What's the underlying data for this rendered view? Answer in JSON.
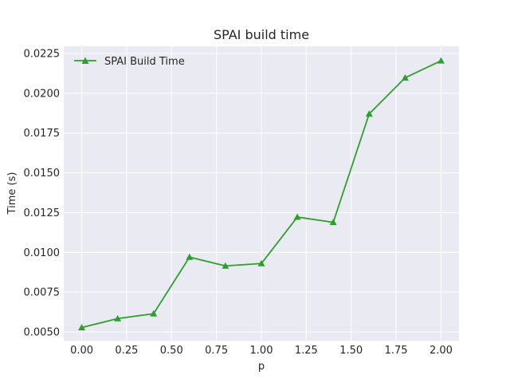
{
  "chart_data": {
    "type": "line",
    "title": "SPAI build time",
    "xlabel": "p",
    "ylabel": "Time (s)",
    "xlim": [
      -0.1,
      2.1
    ],
    "ylim": [
      0.00445,
      0.02295
    ],
    "xticks": [
      0.0,
      0.25,
      0.5,
      0.75,
      1.0,
      1.25,
      1.5,
      1.75,
      2.0
    ],
    "xtick_labels": [
      "0.00",
      "0.25",
      "0.50",
      "0.75",
      "1.00",
      "1.25",
      "1.50",
      "1.75",
      "2.00"
    ],
    "yticks": [
      0.005,
      0.0075,
      0.01,
      0.0125,
      0.015,
      0.0175,
      0.02,
      0.0225
    ],
    "ytick_labels": [
      "0.0050",
      "0.0075",
      "0.0100",
      "0.0125",
      "0.0150",
      "0.0175",
      "0.0200",
      "0.0225"
    ],
    "grid": true,
    "legend_position": "top-left",
    "series": [
      {
        "name": "SPAI Build Time",
        "color": "#2ca02c",
        "marker": "triangle-up",
        "x": [
          0.0,
          0.2,
          0.4,
          0.6,
          0.8,
          1.0,
          1.2,
          1.4,
          1.6,
          1.8,
          2.0
        ],
        "y": [
          0.00528,
          0.00584,
          0.00615,
          0.0097,
          0.00915,
          0.0093,
          0.01222,
          0.01189,
          0.0187,
          0.02097,
          0.02204
        ]
      }
    ]
  }
}
